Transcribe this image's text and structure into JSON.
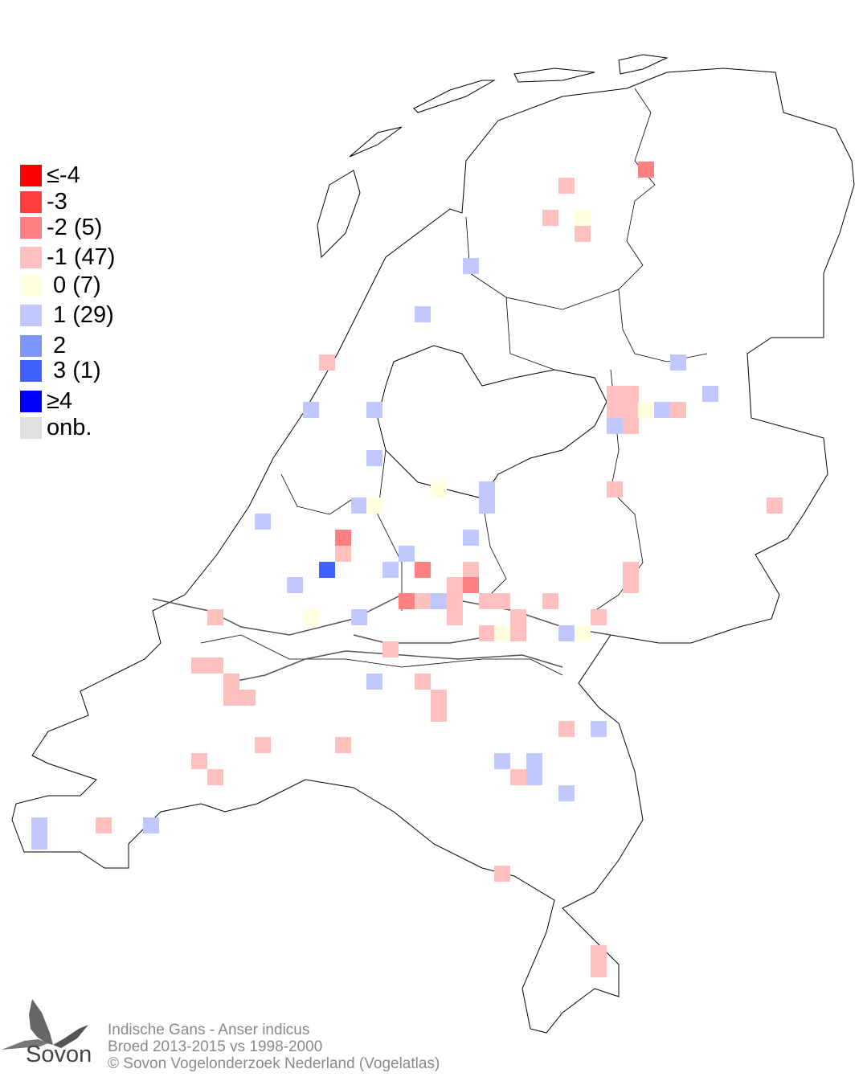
{
  "legend": {
    "items": [
      {
        "label": "≤-4",
        "color": "#ff0000"
      },
      {
        "label": "-3",
        "color": "#ff4040"
      },
      {
        "label": "-2 (5)",
        "color": "#ff8080"
      },
      {
        "label": "-1 (47)",
        "color": "#ffc0c0"
      },
      {
        "label": " 0 (7)",
        "color": "#ffffe0"
      },
      {
        "label": " 1 (29)",
        "color": "#c0c8ff"
      },
      {
        "label": " 2",
        "color": "#8096ff"
      },
      {
        "label": " 3 (1)",
        "color": "#4060ff"
      },
      {
        "label": "≥4",
        "color": "#0000ff"
      },
      {
        "label": "onb.",
        "color": "#e0e0e0"
      }
    ]
  },
  "footer": {
    "line1": "Indische Gans - Anser indicus",
    "line2": "Broed 2013-2015 vs 1998-2000",
    "line3": "© Sovon Vogelonderzoek Nederland (Vogelatlas)"
  },
  "logo": {
    "text": "Sovon"
  }
}
